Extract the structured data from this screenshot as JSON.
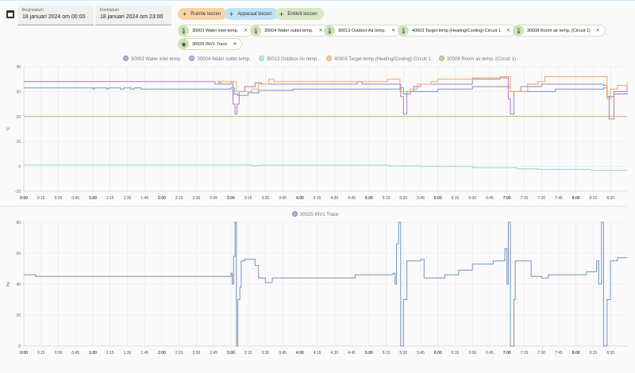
{
  "dates": {
    "start_label": "Begindatum",
    "start_value": "18 januari 2024 om 00:00",
    "end_label": "Einddatum",
    "end_value": "18 januari 2024 om 23:00"
  },
  "pickers": [
    {
      "label": "Ruimte kiezen",
      "color": "#f8d4a8"
    },
    {
      "label": "Apparaat kiezen",
      "color": "#bfe2f6"
    },
    {
      "label": "Entiteit kiezen",
      "color": "#d7e8c8"
    }
  ],
  "chips": [
    {
      "label": "30003 Water inlet temp.",
      "icon": "thermometer"
    },
    {
      "label": "30004 Water outlet temp.",
      "icon": "thermometer"
    },
    {
      "label": "30013 Outdoor Air temp.",
      "icon": "thermometer"
    },
    {
      "label": "40003 Target temp (Heating/Cooling) Circuit 1",
      "icon": "thermometer"
    },
    {
      "label": "30008 Room air temp. (Circuit 1)",
      "icon": "thermometer"
    },
    {
      "label": "30025 INV1 Trace",
      "icon": "eye"
    }
  ],
  "chart_data": [
    {
      "type": "line",
      "ylabel": "°C",
      "ylim": [
        -10,
        40
      ],
      "yticks": [
        -10,
        0,
        10,
        20,
        30,
        40
      ],
      "xlim": [
        0,
        8.74
      ],
      "xticks": [
        "0:00",
        "0:15",
        "0:30",
        "0:45",
        "1:00",
        "1:15",
        "1:30",
        "1:45",
        "2:00",
        "2:15",
        "2:30",
        "2:45",
        "3:00",
        "3:15",
        "3:30",
        "3:45",
        "4:00",
        "4:15",
        "4:30",
        "4:45",
        "5:00",
        "5:15",
        "5:30",
        "5:45",
        "6:00",
        "6:15",
        "6:30",
        "6:45",
        "7:00",
        "7:15",
        "7:30",
        "7:45",
        "8:00",
        "8:15",
        "8:30"
      ],
      "legend_position": "top-center",
      "series": [
        {
          "name": "30003 Water inlet temp.",
          "color": "#7391bd",
          "points": [
            [
              0,
              31.5
            ],
            [
              1.0,
              31
            ],
            [
              1.02,
              31.5
            ],
            [
              1.2,
              31
            ],
            [
              1.23,
              31.5
            ],
            [
              1.4,
              31
            ],
            [
              1.45,
              31.5
            ],
            [
              1.55,
              31
            ],
            [
              1.6,
              31.5
            ],
            [
              1.7,
              31
            ],
            [
              3.0,
              31.5
            ],
            [
              3.05,
              29
            ],
            [
              3.1,
              28.5
            ],
            [
              3.25,
              29.5
            ],
            [
              3.4,
              30.5
            ],
            [
              3.9,
              31
            ],
            [
              5.45,
              31.5
            ],
            [
              5.5,
              29
            ],
            [
              5.6,
              30
            ],
            [
              6.0,
              31
            ],
            [
              6.5,
              32
            ],
            [
              7.0,
              32
            ],
            [
              7.05,
              30
            ],
            [
              7.15,
              30
            ],
            [
              7.7,
              31
            ],
            [
              8.4,
              31.5
            ],
            [
              8.45,
              28
            ],
            [
              8.55,
              29
            ],
            [
              8.74,
              29.5
            ]
          ]
        },
        {
          "name": "30004 Water outlet temp.",
          "color": "#a97cc4",
          "points": [
            [
              0,
              34
            ],
            [
              2.77,
              33
            ],
            [
              2.83,
              34
            ],
            [
              2.85,
              33
            ],
            [
              3.0,
              33.5
            ],
            [
              3.03,
              25
            ],
            [
              3.06,
              21
            ],
            [
              3.09,
              25
            ],
            [
              3.12,
              30
            ],
            [
              3.2,
              32
            ],
            [
              3.35,
              33.5
            ],
            [
              3.45,
              33
            ],
            [
              4.8,
              33
            ],
            [
              4.83,
              34
            ],
            [
              4.9,
              33
            ],
            [
              5.42,
              33
            ],
            [
              5.46,
              28
            ],
            [
              5.5,
              21
            ],
            [
              5.55,
              30
            ],
            [
              5.65,
              32
            ],
            [
              5.75,
              33
            ],
            [
              6.0,
              33
            ],
            [
              6.5,
              35
            ],
            [
              6.9,
              35.5
            ],
            [
              7.0,
              35.5
            ],
            [
              7.02,
              27
            ],
            [
              7.05,
              21
            ],
            [
              7.1,
              30
            ],
            [
              7.2,
              32
            ],
            [
              7.5,
              33
            ],
            [
              8.4,
              32.5
            ],
            [
              8.45,
              28
            ],
            [
              8.48,
              19
            ],
            [
              8.55,
              30
            ],
            [
              8.74,
              33
            ]
          ]
        },
        {
          "name": "30013 Outdoor Air temp.",
          "color": "#86dcd8",
          "points": [
            [
              0,
              0.6
            ],
            [
              3.2,
              0.6
            ],
            [
              3.3,
              0.3
            ],
            [
              3.45,
              0.5
            ],
            [
              5.0,
              0.5
            ],
            [
              5.3,
              0.2
            ],
            [
              5.75,
              0
            ],
            [
              6.5,
              -0.5
            ],
            [
              7.15,
              -1
            ],
            [
              7.45,
              -1.2
            ],
            [
              8.2,
              -1.6
            ],
            [
              8.74,
              -1.7
            ]
          ]
        },
        {
          "name": "40003 Target temp (Heating/Cooling) Circuit 1",
          "color": "#f5a45f",
          "points": [
            [
              2.8,
              34
            ],
            [
              3.08,
              30
            ],
            [
              3.3,
              31
            ],
            [
              3.4,
              33
            ],
            [
              3.55,
              35
            ],
            [
              3.62,
              34
            ],
            [
              5.25,
              34
            ],
            [
              5.27,
              35
            ],
            [
              5.4,
              35
            ],
            [
              5.45,
              30
            ],
            [
              5.6,
              31
            ],
            [
              5.7,
              33
            ],
            [
              5.9,
              34
            ],
            [
              6.0,
              35
            ],
            [
              6.5,
              35.5
            ],
            [
              6.9,
              36
            ],
            [
              7.05,
              30
            ],
            [
              7.3,
              33
            ],
            [
              7.45,
              34
            ],
            [
              7.55,
              36
            ],
            [
              8.4,
              36
            ],
            [
              8.45,
              27
            ],
            [
              8.5,
              31
            ],
            [
              8.6,
              32.5
            ],
            [
              8.74,
              33.5
            ]
          ]
        },
        {
          "name": "30008 Room air temp. (Circuit 1)",
          "color": "#c9b067",
          "points": [
            [
              0,
              20
            ],
            [
              8.74,
              20
            ]
          ]
        }
      ]
    },
    {
      "type": "line",
      "ylabel": "Hz",
      "ylim": [
        0,
        80
      ],
      "yticks": [
        0,
        20,
        40,
        60,
        80
      ],
      "xlim": [
        0,
        8.74
      ],
      "legend_position": "top-center",
      "series": [
        {
          "name": "30025 INV1 Trace",
          "color": "#7391bd",
          "points": [
            [
              0,
              46
            ],
            [
              0.17,
              45
            ],
            [
              2.95,
              45
            ],
            [
              3.0,
              47
            ],
            [
              3.02,
              40
            ],
            [
              3.04,
              58
            ],
            [
              3.06,
              80
            ],
            [
              3.08,
              0
            ],
            [
              3.1,
              30
            ],
            [
              3.13,
              38
            ],
            [
              3.15,
              55
            ],
            [
              3.2,
              56
            ],
            [
              3.3,
              56
            ],
            [
              3.35,
              52
            ],
            [
              3.4,
              44
            ],
            [
              3.5,
              41
            ],
            [
              3.6,
              44
            ],
            [
              4.5,
              44
            ],
            [
              4.8,
              46
            ],
            [
              5.35,
              47
            ],
            [
              5.38,
              40
            ],
            [
              5.4,
              66
            ],
            [
              5.43,
              80
            ],
            [
              5.46,
              0
            ],
            [
              5.5,
              30
            ],
            [
              5.55,
              55
            ],
            [
              5.75,
              56
            ],
            [
              5.8,
              44
            ],
            [
              6.0,
              44
            ],
            [
              6.1,
              46
            ],
            [
              6.3,
              49
            ],
            [
              6.5,
              53
            ],
            [
              6.8,
              55
            ],
            [
              6.97,
              63
            ],
            [
              7.0,
              40
            ],
            [
              7.02,
              80
            ],
            [
              7.05,
              0
            ],
            [
              7.1,
              30
            ],
            [
              7.12,
              55
            ],
            [
              7.3,
              55
            ],
            [
              7.35,
              45
            ],
            [
              7.5,
              44
            ],
            [
              7.6,
              46
            ],
            [
              8.0,
              46
            ],
            [
              8.15,
              48
            ],
            [
              8.3,
              55
            ],
            [
              8.33,
              40
            ],
            [
              8.37,
              80
            ],
            [
              8.4,
              0
            ],
            [
              8.45,
              30
            ],
            [
              8.5,
              55
            ],
            [
              8.6,
              57
            ],
            [
              8.74,
              57
            ]
          ]
        }
      ]
    }
  ]
}
